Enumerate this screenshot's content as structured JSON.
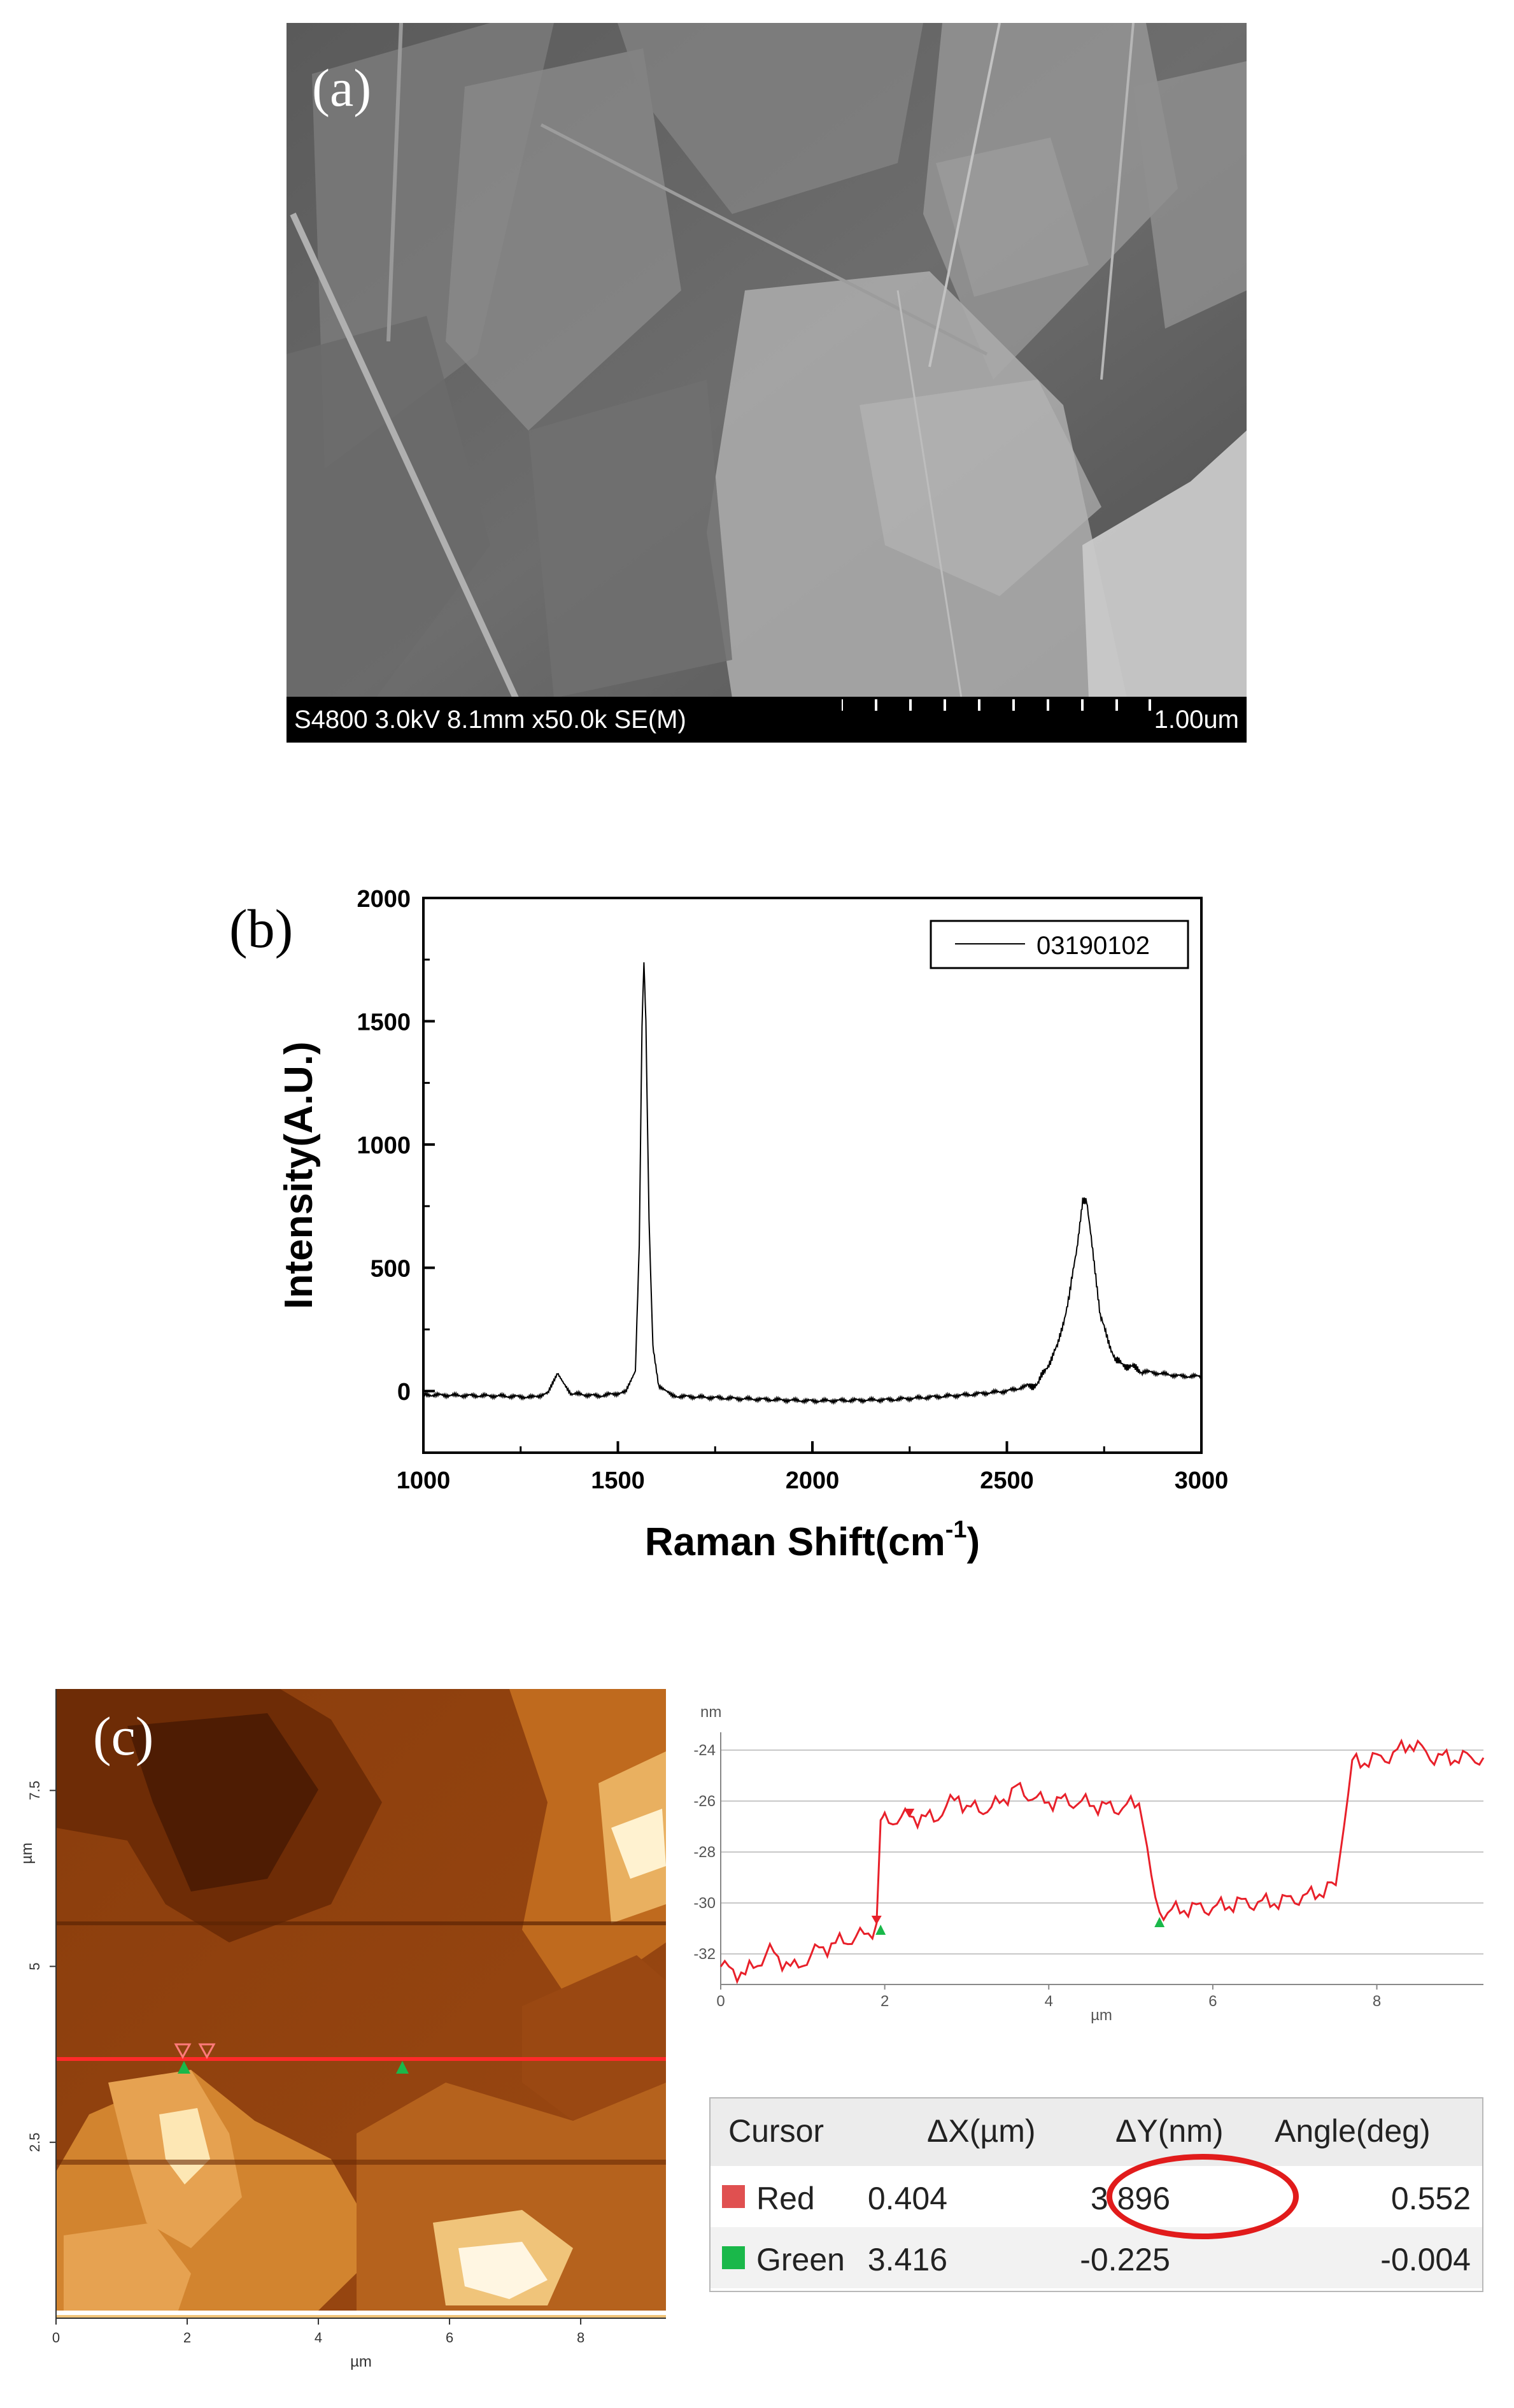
{
  "panel_a": {
    "label": "(a)",
    "info": "S4800 3.0kV 8.1mm x50.0k SE(M)",
    "scale": "1.00um"
  },
  "panel_b": {
    "label": "(b)",
    "chart_data": {
      "type": "line",
      "title": "",
      "xlabel": "Raman Shift(cm",
      "xlabel_sup": "-1",
      "xlabel_end": ")",
      "ylabel": "Intensity(A.U.)",
      "xlim": [
        1000,
        3000
      ],
      "ylim": [
        -250,
        2000
      ],
      "xticks": [
        "1000",
        "1500",
        "2000",
        "2500",
        "3000"
      ],
      "yticks": [
        "0",
        "500",
        "1000",
        "1500",
        "2000"
      ],
      "legend_position": "top-right",
      "series": [
        {
          "name": "03190102",
          "x": [
            1000,
            1100,
            1200,
            1280,
            1320,
            1345,
            1360,
            1380,
            1450,
            1520,
            1545,
            1555,
            1562,
            1567,
            1572,
            1580,
            1590,
            1605,
            1640,
            1800,
            2000,
            2200,
            2400,
            2500,
            2580,
            2630,
            2660,
            2680,
            2695,
            2705,
            2715,
            2740,
            2780,
            2850,
            2950,
            3000
          ],
          "y": [
            -15,
            -18,
            -20,
            -25,
            -10,
            70,
            30,
            -10,
            -20,
            -5,
            80,
            600,
            1480,
            1740,
            1500,
            700,
            180,
            20,
            -20,
            -30,
            -40,
            -35,
            -15,
            0,
            30,
            180,
            380,
            580,
            770,
            780,
            650,
            300,
            120,
            80,
            60,
            60
          ]
        }
      ]
    }
  },
  "panel_c": {
    "label": "(c)",
    "afm_x_unit": "µm",
    "afm_y_unit": "µm",
    "afm_xticks": [
      "0",
      "2",
      "4",
      "6",
      "8"
    ],
    "afm_yticks": [
      "2.5",
      "5",
      "7.5"
    ],
    "profile": {
      "y_unit": "nm",
      "x_unit": "µm",
      "yticks": [
        "-24",
        "-26",
        "-28",
        "-30",
        "-32"
      ],
      "xticks": [
        "0",
        "2",
        "4",
        "6",
        "8"
      ],
      "xlim": [
        0,
        9.3
      ],
      "ylim": [
        -33.2,
        -23.3
      ],
      "x": [
        0,
        0.3,
        0.6,
        0.9,
        1.2,
        1.5,
        1.8,
        1.9,
        1.95,
        2.0,
        2.3,
        2.6,
        2.9,
        3.0,
        3.3,
        3.6,
        3.9,
        4.2,
        4.5,
        4.8,
        5.1,
        5.2,
        5.3,
        5.4,
        5.7,
        6.0,
        6.3,
        6.6,
        6.9,
        7.2,
        7.5,
        7.6,
        7.7,
        7.9,
        8.2,
        8.4,
        8.7,
        9.0,
        9.3
      ],
      "y": [
        -32.5,
        -32.8,
        -31.9,
        -32.6,
        -31.8,
        -31.5,
        -31.2,
        -30.8,
        -26.8,
        -26.8,
        -26.6,
        -26.7,
        -25.8,
        -26.3,
        -26.3,
        -25.5,
        -26.0,
        -26.0,
        -26.1,
        -26.3,
        -26.1,
        -27.8,
        -30.0,
        -30.4,
        -30.2,
        -30.2,
        -30.0,
        -30.0,
        -29.9,
        -29.7,
        -29.3,
        -27.0,
        -24.5,
        -24.4,
        -24.2,
        -23.7,
        -24.3,
        -24.3,
        -24.3
      ]
    },
    "table": {
      "headers": [
        "Cursor",
        "ΔX(µm)",
        "ΔY(nm)",
        "Angle(deg)"
      ],
      "rows": [
        {
          "name": "Red",
          "color": "#e05050",
          "dx": "0.404",
          "dy": "3.896",
          "angle": "0.552"
        },
        {
          "name": "Green",
          "color": "#1ab84a",
          "dx": "3.416",
          "dy": "-0.225",
          "angle": "-0.004"
        }
      ]
    }
  }
}
